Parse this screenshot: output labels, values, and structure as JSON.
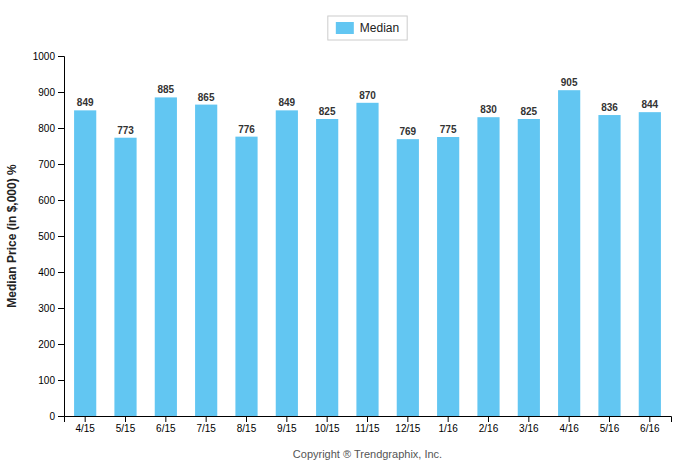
{
  "chart_data": {
    "type": "bar",
    "categories": [
      "4/15",
      "5/15",
      "6/15",
      "7/15",
      "8/15",
      "9/15",
      "10/15",
      "11/15",
      "12/15",
      "1/16",
      "2/16",
      "3/16",
      "4/16",
      "5/16",
      "6/16"
    ],
    "series": [
      {
        "name": "Median",
        "color": "#62C6F2",
        "values": [
          849,
          773,
          885,
          865,
          776,
          849,
          825,
          870,
          769,
          775,
          830,
          825,
          905,
          836,
          844
        ]
      }
    ],
    "ylabel": "Median Price (in $,000) %",
    "xlabel": "Copyright ® Trendgraphix, Inc.",
    "ylim": [
      0,
      1000
    ],
    "yticks": [
      0,
      100,
      200,
      300,
      400,
      500,
      600,
      700,
      800,
      900,
      1000
    ],
    "grid": false,
    "legend": "top",
    "data_labels": true
  }
}
